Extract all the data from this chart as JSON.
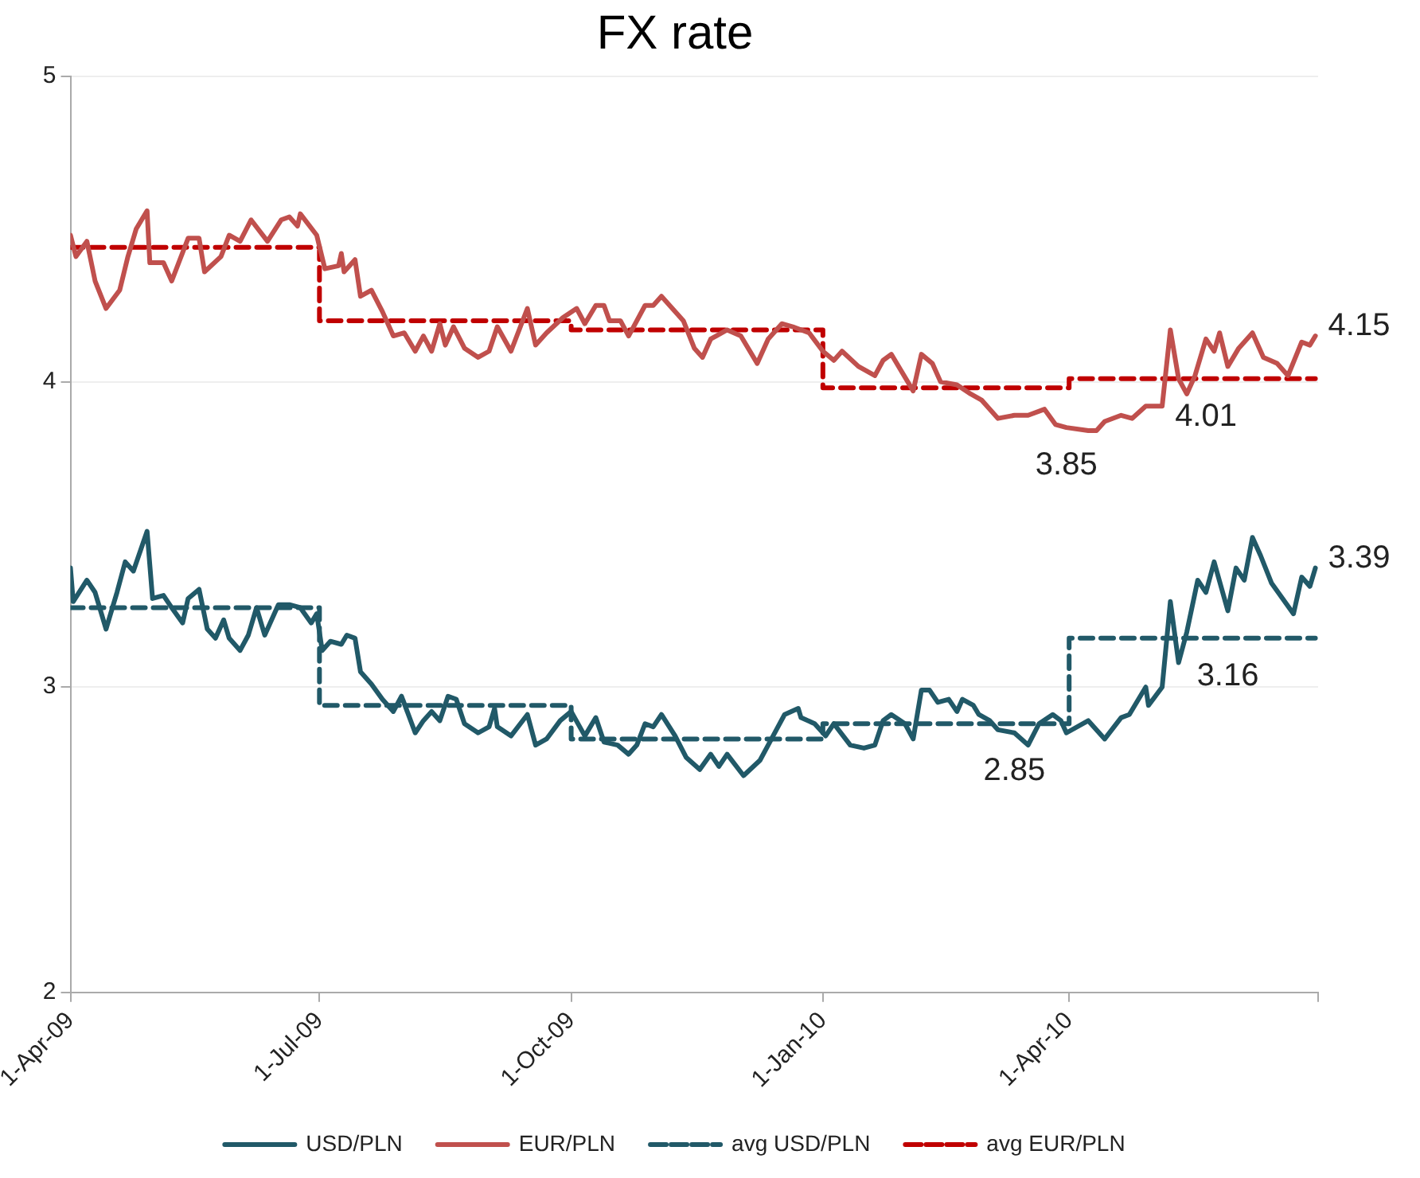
{
  "chart_data": {
    "type": "line",
    "title": "FX rate",
    "xlim": [
      "2009-04-01",
      "2010-07-01"
    ],
    "xticks": [
      {
        "value": "2009-04-01",
        "label": "1-Apr-09"
      },
      {
        "value": "2009-07-01",
        "label": "1-Jul-09"
      },
      {
        "value": "2009-10-01",
        "label": "1-Oct-09"
      },
      {
        "value": "2010-01-01",
        "label": "1-Jan-10"
      },
      {
        "value": "2010-04-01",
        "label": "1-Apr-10"
      },
      {
        "value": "2010-07-01",
        "label": null
      }
    ],
    "ylim": [
      2,
      5
    ],
    "yticks": [
      2,
      3,
      4,
      5
    ],
    "grid": "y",
    "legend": "bottom",
    "marker": "none",
    "series": [
      {
        "name": "USD/PLN",
        "color": "#215968",
        "x": [
          "2009-04-01",
          "2009-04-02",
          "2009-04-07",
          "2009-04-10",
          "2009-04-14",
          "2009-04-18",
          "2009-04-21",
          "2009-04-24",
          "2009-04-29",
          "2009-05-01",
          "2009-05-05",
          "2009-05-08",
          "2009-05-12",
          "2009-05-14",
          "2009-05-18",
          "2009-05-21",
          "2009-05-24",
          "2009-05-27",
          "2009-05-29",
          "2009-06-02",
          "2009-06-05",
          "2009-06-08",
          "2009-06-11",
          "2009-06-16",
          "2009-06-20",
          "2009-06-24",
          "2009-06-28",
          "2009-06-30",
          "2009-07-02",
          "2009-07-05",
          "2009-07-09",
          "2009-07-11",
          "2009-07-14",
          "2009-07-16",
          "2009-07-20",
          "2009-07-24",
          "2009-07-28",
          "2009-07-31",
          "2009-08-05",
          "2009-08-08",
          "2009-08-11",
          "2009-08-14",
          "2009-08-17",
          "2009-08-20",
          "2009-08-23",
          "2009-08-28",
          "2009-09-01",
          "2009-09-03",
          "2009-09-04",
          "2009-09-09",
          "2009-09-15",
          "2009-09-18",
          "2009-09-22",
          "2009-09-27",
          "2009-10-01",
          "2009-10-06",
          "2009-10-10",
          "2009-10-13",
          "2009-10-18",
          "2009-10-22",
          "2009-10-25",
          "2009-10-28",
          "2009-10-31",
          "2009-11-03",
          "2009-11-08",
          "2009-11-12",
          "2009-11-17",
          "2009-11-21",
          "2009-11-24",
          "2009-11-27",
          "2009-12-03",
          "2009-12-09",
          "2009-12-12",
          "2009-12-15",
          "2009-12-18",
          "2009-12-23",
          "2009-12-24",
          "2009-12-29",
          "2010-01-02",
          "2010-01-05",
          "2010-01-11",
          "2010-01-16",
          "2010-01-20",
          "2010-01-23",
          "2010-01-26",
          "2010-01-31",
          "2010-02-03",
          "2010-02-06",
          "2010-02-09",
          "2010-02-12",
          "2010-02-16",
          "2010-02-19",
          "2010-02-21",
          "2010-02-25",
          "2010-02-27",
          "2010-03-03",
          "2010-03-06",
          "2010-03-12",
          "2010-03-17",
          "2010-03-21",
          "2010-03-26",
          "2010-03-29",
          "2010-03-31",
          "2010-04-08",
          "2010-04-14",
          "2010-04-20",
          "2010-04-23",
          "2010-04-29",
          "2010-04-30",
          "2010-05-05",
          "2010-05-08",
          "2010-05-11",
          "2010-05-14",
          "2010-05-18",
          "2010-05-21",
          "2010-05-24",
          "2010-05-29",
          "2010-06-01",
          "2010-06-04",
          "2010-06-07",
          "2010-06-10",
          "2010-06-14",
          "2010-06-22",
          "2010-06-25",
          "2010-06-28",
          "2010-06-30"
        ],
        "values": [
          3.39,
          3.28,
          3.35,
          3.31,
          3.19,
          3.31,
          3.41,
          3.38,
          3.51,
          3.29,
          3.3,
          3.26,
          3.21,
          3.29,
          3.32,
          3.19,
          3.16,
          3.22,
          3.16,
          3.12,
          3.17,
          3.26,
          3.17,
          3.27,
          3.27,
          3.26,
          3.21,
          3.24,
          3.12,
          3.15,
          3.14,
          3.17,
          3.16,
          3.05,
          3.01,
          2.96,
          2.92,
          2.97,
          2.85,
          2.89,
          2.92,
          2.89,
          2.97,
          2.96,
          2.88,
          2.85,
          2.87,
          2.93,
          2.87,
          2.84,
          2.91,
          2.81,
          2.83,
          2.89,
          2.92,
          2.84,
          2.9,
          2.82,
          2.81,
          2.78,
          2.81,
          2.88,
          2.87,
          2.91,
          2.84,
          2.77,
          2.73,
          2.78,
          2.74,
          2.78,
          2.71,
          2.76,
          2.81,
          2.86,
          2.91,
          2.93,
          2.9,
          2.88,
          2.84,
          2.88,
          2.81,
          2.8,
          2.81,
          2.89,
          2.91,
          2.88,
          2.83,
          2.99,
          2.99,
          2.95,
          2.96,
          2.92,
          2.96,
          2.94,
          2.91,
          2.89,
          2.86,
          2.85,
          2.81,
          2.88,
          2.91,
          2.89,
          2.85,
          2.89,
          2.83,
          2.9,
          2.91,
          3.0,
          2.94,
          3.0,
          3.28,
          3.08,
          3.18,
          3.35,
          3.31,
          3.41,
          3.25,
          3.39,
          3.35,
          3.49,
          3.43,
          3.34,
          3.24,
          3.36,
          3.33,
          3.39
        ]
      },
      {
        "name": "EUR/PLN",
        "color": "#c0504d",
        "x": [
          "2009-04-01",
          "2009-04-03",
          "2009-04-07",
          "2009-04-10",
          "2009-04-14",
          "2009-04-19",
          "2009-04-22",
          "2009-04-25",
          "2009-04-29",
          "2009-04-30",
          "2009-05-05",
          "2009-05-08",
          "2009-05-14",
          "2009-05-18",
          "2009-05-20",
          "2009-05-26",
          "2009-05-29",
          "2009-06-02",
          "2009-06-06",
          "2009-06-12",
          "2009-06-17",
          "2009-06-20",
          "2009-06-23",
          "2009-06-24",
          "2009-06-30",
          "2009-07-03",
          "2009-07-08",
          "2009-07-09",
          "2009-07-10",
          "2009-07-14",
          "2009-07-16",
          "2009-07-20",
          "2009-07-24",
          "2009-07-28",
          "2009-08-01",
          "2009-08-05",
          "2009-08-08",
          "2009-08-11",
          "2009-08-14",
          "2009-08-16",
          "2009-08-19",
          "2009-08-23",
          "2009-08-28",
          "2009-09-01",
          "2009-09-04",
          "2009-09-09",
          "2009-09-15",
          "2009-09-18",
          "2009-09-22",
          "2009-09-28",
          "2009-10-03",
          "2009-10-06",
          "2009-10-10",
          "2009-10-13",
          "2009-10-15",
          "2009-10-19",
          "2009-10-22",
          "2009-10-28",
          "2009-10-31",
          "2009-11-03",
          "2009-11-11",
          "2009-11-15",
          "2009-11-18",
          "2009-11-21",
          "2009-11-23",
          "2009-11-27",
          "2009-12-02",
          "2009-12-08",
          "2009-12-12",
          "2009-12-17",
          "2009-12-21",
          "2009-12-27",
          "2010-01-01",
          "2010-01-05",
          "2010-01-08",
          "2010-01-14",
          "2010-01-20",
          "2010-01-23",
          "2010-01-26",
          "2010-02-03",
          "2010-02-06",
          "2010-02-10",
          "2010-02-13",
          "2010-02-19",
          "2010-02-24",
          "2010-02-28",
          "2010-03-06",
          "2010-03-12",
          "2010-03-17",
          "2010-03-23",
          "2010-03-27",
          "2010-03-31",
          "2010-04-08",
          "2010-04-11",
          "2010-04-14",
          "2010-04-20",
          "2010-04-24",
          "2010-04-29",
          "2010-05-02",
          "2010-05-05",
          "2010-05-08",
          "2010-05-11",
          "2010-05-14",
          "2010-05-17",
          "2010-05-21",
          "2010-05-24",
          "2010-05-26",
          "2010-05-29",
          "2010-06-02",
          "2010-06-07",
          "2010-06-11",
          "2010-06-16",
          "2010-06-20",
          "2010-06-25",
          "2010-06-28",
          "2010-06-30"
        ],
        "values": [
          4.48,
          4.41,
          4.46,
          4.33,
          4.24,
          4.3,
          4.41,
          4.5,
          4.56,
          4.39,
          4.39,
          4.33,
          4.47,
          4.47,
          4.36,
          4.41,
          4.48,
          4.46,
          4.53,
          4.46,
          4.53,
          4.54,
          4.51,
          4.55,
          4.48,
          4.37,
          4.38,
          4.42,
          4.36,
          4.4,
          4.28,
          4.3,
          4.23,
          4.15,
          4.16,
          4.1,
          4.15,
          4.1,
          4.19,
          4.12,
          4.18,
          4.11,
          4.08,
          4.1,
          4.18,
          4.1,
          4.24,
          4.12,
          4.16,
          4.21,
          4.24,
          4.19,
          4.25,
          4.25,
          4.2,
          4.2,
          4.15,
          4.25,
          4.25,
          4.28,
          4.2,
          4.11,
          4.08,
          4.14,
          4.15,
          4.17,
          4.15,
          4.06,
          4.14,
          4.19,
          4.18,
          4.16,
          4.1,
          4.07,
          4.1,
          4.05,
          4.02,
          4.07,
          4.09,
          3.97,
          4.09,
          4.06,
          4.0,
          3.99,
          3.96,
          3.94,
          3.88,
          3.89,
          3.89,
          3.91,
          3.86,
          3.85,
          3.84,
          3.84,
          3.87,
          3.89,
          3.88,
          3.92,
          3.92,
          3.92,
          4.17,
          4.01,
          3.96,
          4.02,
          4.14,
          4.1,
          4.16,
          4.05,
          4.11,
          4.16,
          4.08,
          4.06,
          4.02,
          4.13,
          4.12,
          4.15
        ]
      },
      {
        "name": "avg USD/PLN",
        "type": "step",
        "color": "#215968",
        "line_style": "dashed",
        "x": [
          "2009-04-01",
          "2009-07-01",
          "2009-10-01",
          "2010-01-01",
          "2010-04-01",
          "2010-06-30"
        ],
        "values": [
          3.26,
          2.94,
          2.83,
          2.88,
          3.16,
          3.16
        ]
      },
      {
        "name": "avg EUR/PLN",
        "type": "step",
        "color": "#c00000",
        "line_style": "dashed",
        "x": [
          "2009-04-01",
          "2009-07-01",
          "2009-10-01",
          "2010-01-01",
          "2010-04-01",
          "2010-06-30"
        ],
        "values": [
          4.44,
          4.2,
          4.17,
          3.98,
          4.01,
          4.01
        ]
      }
    ],
    "annotations": [
      {
        "text": "4.15",
        "x": "2010-06-30",
        "y": 4.15
      },
      {
        "text": "4.01",
        "x": "2010-05-21",
        "y": 4.01
      },
      {
        "text": "3.85",
        "x": "2010-03-31",
        "y": 3.85
      },
      {
        "text": "3.39",
        "x": "2010-06-30",
        "y": 3.39
      },
      {
        "text": "3.16",
        "x": "2010-05-29",
        "y": 3.16
      },
      {
        "text": "2.85",
        "x": "2010-03-12",
        "y": 2.85
      }
    ]
  }
}
